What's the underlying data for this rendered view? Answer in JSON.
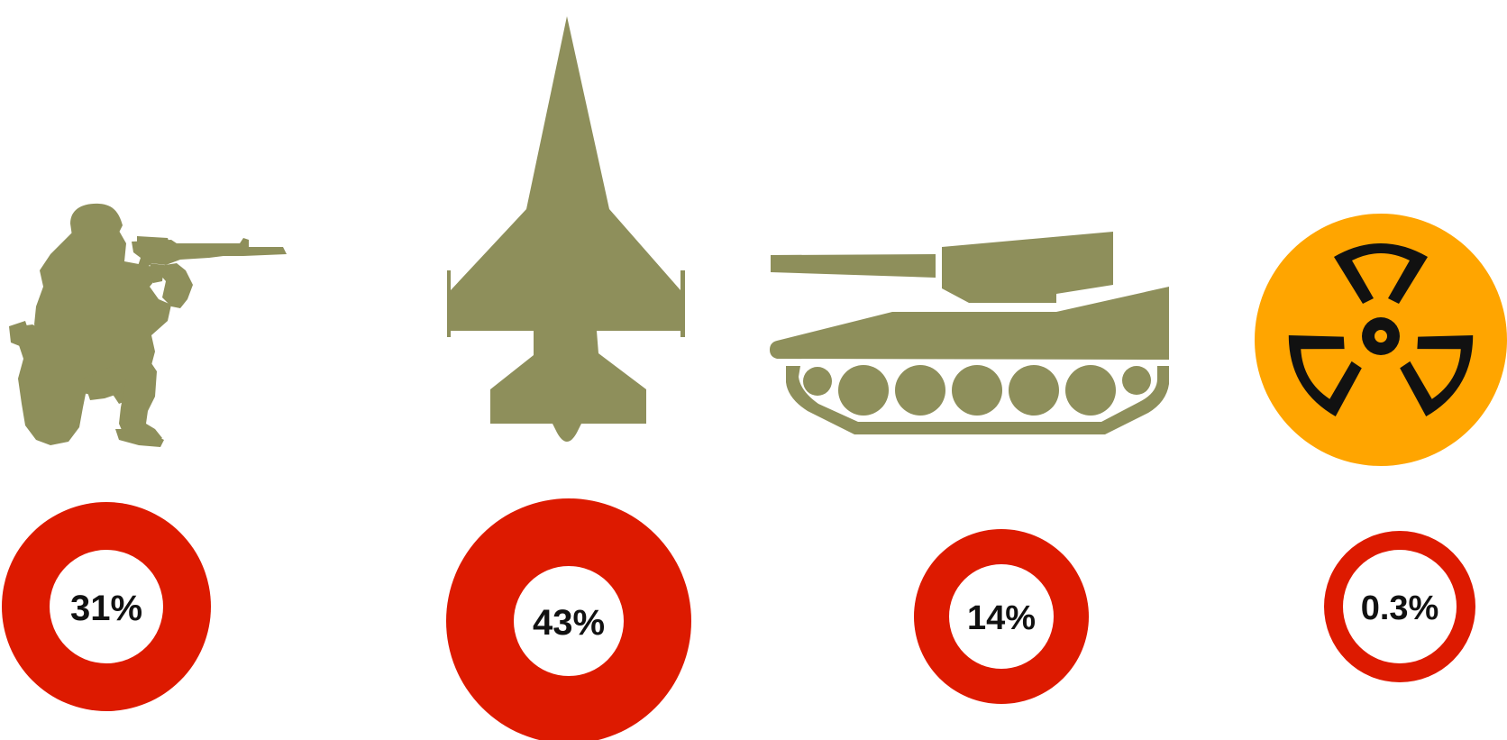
{
  "colors": {
    "silhouette": "#8E8F5B",
    "ring": "#DD1A00",
    "hazard_disc": "#FFA500",
    "hazard_symbol": "#111111",
    "ring_center": "#ffffff"
  },
  "items": [
    {
      "id": "soldier",
      "icon": "soldier-icon",
      "label": "31%",
      "value": 31
    },
    {
      "id": "jet",
      "icon": "fighter-jet-icon",
      "label": "43%",
      "value": 43
    },
    {
      "id": "tank",
      "icon": "tank-icon",
      "label": "14%",
      "value": 14
    },
    {
      "id": "nuclear",
      "icon": "radiation-hazard-icon",
      "label": "0.3%",
      "value": 0.3
    }
  ]
}
